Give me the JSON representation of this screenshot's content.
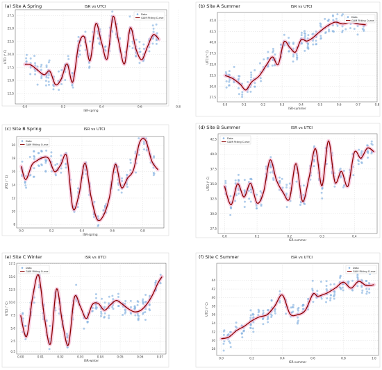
{
  "chart_data": [
    {
      "type": "scatter",
      "panel_label": "(a) Site A   Spring",
      "title": "ISR vs UTCI",
      "xlabel": "ISR-spring",
      "ylabel": "UTCI (° C)",
      "xlim": [
        -0.05,
        0.74
      ],
      "ylim": [
        10.5,
        28.6
      ],
      "xticks": [
        0.0,
        0.2,
        0.4,
        0.6,
        0.8
      ],
      "xtick_labels": [
        "0.0",
        "0.2",
        "0.4",
        "0.6",
        "0.8"
      ],
      "yticks": [
        12.5,
        15.0,
        17.5,
        20.0,
        22.5,
        25.0,
        27.5
      ],
      "ytick_labels": [
        "12.5",
        "15.0",
        "17.5",
        "20.0",
        "22.5",
        "25.0",
        "27.5"
      ],
      "legend": [
        "Data",
        "GAM Fitting Curve"
      ],
      "legend_position": "top-right",
      "fit_curve": {
        "x": [
          0.0,
          0.03,
          0.06,
          0.1,
          0.13,
          0.16,
          0.19,
          0.22,
          0.25,
          0.28,
          0.31,
          0.34,
          0.37,
          0.4,
          0.43,
          0.46,
          0.49,
          0.52,
          0.55,
          0.58,
          0.61,
          0.64,
          0.67,
          0.7
        ],
        "y": [
          18.1,
          18.0,
          17.2,
          16.1,
          16.8,
          14.2,
          15.3,
          18.2,
          14.7,
          21.7,
          23.4,
          18.8,
          25.9,
          22.3,
          19.2,
          27.3,
          22.4,
          18.2,
          25.1,
          21.0,
          19.0,
          21.5,
          23.8,
          22.9
        ]
      }
    },
    {
      "type": "scatter",
      "panel_label": "(b) Site A  Summer",
      "title": "ISR vs UTCI",
      "xlabel": "ISR-summer",
      "ylabel": "UTCI (° C)",
      "xlim": [
        -0.04,
        0.8
      ],
      "ylim": [
        26.5,
        46.8
      ],
      "xticks": [
        0.0,
        0.1,
        0.2,
        0.3,
        0.4,
        0.5,
        0.6,
        0.7,
        0.8
      ],
      "xtick_labels": [
        "0.0",
        "0.1",
        "0.2",
        "0.3",
        "0.4",
        "0.5",
        "0.6",
        "0.7",
        "0.8"
      ],
      "yticks": [
        27.5,
        30.0,
        32.5,
        35.0,
        37.5,
        40.0,
        42.5,
        45.0
      ],
      "ytick_labels": [
        "27.5",
        "30.0",
        "32.5",
        "35.0",
        "37.5",
        "40.0",
        "42.5",
        "45.0"
      ],
      "legend": [
        "Data",
        "GAM Fitting Curve"
      ],
      "legend_position": "top-right",
      "fit_curve": {
        "x": [
          0.0,
          0.04,
          0.08,
          0.11,
          0.14,
          0.18,
          0.22,
          0.25,
          0.28,
          0.31,
          0.34,
          0.37,
          0.4,
          0.43,
          0.46,
          0.5,
          0.54,
          0.58,
          0.62,
          0.66,
          0.7,
          0.74
        ],
        "y": [
          32.5,
          31.8,
          30.5,
          29.2,
          31.0,
          32.4,
          35.0,
          36.7,
          35.0,
          40.1,
          38.9,
          37.8,
          40.6,
          40.3,
          41.0,
          42.5,
          43.8,
          44.6,
          44.2,
          44.6,
          44.2,
          44.0
        ]
      }
    },
    {
      "type": "scatter",
      "panel_label": "(c) Site B Spring",
      "title": "ISR vs UTCI",
      "xlabel": "ISR-spring",
      "ylabel": "UTCI (° C)",
      "xlim": [
        -0.03,
        0.94
      ],
      "ylim": [
        7.5,
        21.3
      ],
      "xticks": [
        0.0,
        0.2,
        0.4,
        0.6,
        0.8
      ],
      "xtick_labels": [
        "0.0",
        "0.2",
        "0.4",
        "0.6",
        "0.8"
      ],
      "yticks": [
        8,
        10,
        12,
        14,
        16,
        18,
        20
      ],
      "ytick_labels": [
        "8",
        "10",
        "12",
        "14",
        "16",
        "18",
        "20"
      ],
      "legend": [
        "Data",
        "GAM Fitting Curve"
      ],
      "legend_position": "top-left",
      "fit_curve": {
        "x": [
          0.0,
          0.03,
          0.07,
          0.1,
          0.14,
          0.18,
          0.22,
          0.26,
          0.3,
          0.34,
          0.38,
          0.42,
          0.46,
          0.5,
          0.54,
          0.58,
          0.62,
          0.66,
          0.7,
          0.74,
          0.78,
          0.82,
          0.86,
          0.9
        ],
        "y": [
          16.8,
          14.8,
          17.0,
          17.6,
          18.1,
          18.0,
          16.0,
          17.0,
          18.3,
          10.5,
          12.5,
          17.3,
          12.2,
          8.8,
          9.3,
          12.0,
          17.1,
          13.6,
          15.0,
          16.3,
          20.4,
          20.7,
          17.6,
          16.3
        ]
      }
    },
    {
      "type": "scatter",
      "panel_label": "(d) Site B   Summer",
      "title": "ISR vs UTCI",
      "xlabel": "ISR-summer",
      "ylabel": "UTCI (° C)",
      "xlim": [
        -0.02,
        0.47
      ],
      "ylim": [
        26.7,
        43.4
      ],
      "xticks": [
        0.0,
        0.1,
        0.2,
        0.3,
        0.4
      ],
      "xtick_labels": [
        "0.0",
        "0.1",
        "0.2",
        "0.3",
        "0.4"
      ],
      "yticks": [
        27.5,
        30.0,
        32.5,
        35.0,
        37.5,
        40.0,
        42.5
      ],
      "ytick_labels": [
        "27.5",
        "30.0",
        "32.5",
        "35.0",
        "37.5",
        "40.0",
        "42.5"
      ],
      "legend": [
        "Data",
        "GAM Fitting Curve"
      ],
      "legend_position": "top-left",
      "fit_curve": {
        "x": [
          0.0,
          0.02,
          0.04,
          0.06,
          0.08,
          0.1,
          0.12,
          0.14,
          0.16,
          0.18,
          0.2,
          0.22,
          0.24,
          0.26,
          0.28,
          0.3,
          0.32,
          0.34,
          0.36,
          0.38,
          0.4,
          0.42,
          0.44,
          0.46
        ],
        "y": [
          34.6,
          31.5,
          35.0,
          32.8,
          35.1,
          31.8,
          33.6,
          39.0,
          35.6,
          33.6,
          32.5,
          38.4,
          32.1,
          36.0,
          40.9,
          34.7,
          42.2,
          35.3,
          37.1,
          34.6,
          40.3,
          39.3,
          41.0,
          40.4
        ]
      }
    },
    {
      "type": "scatter",
      "panel_label": "(e) Site C  Winter",
      "title": "ISR vs UTCI",
      "xlabel": "ISR-winter",
      "ylabel": "UTCI (° C)",
      "xlim": [
        -0.002,
        0.073
      ],
      "ylim": [
        0.0,
        17.6
      ],
      "xticks": [
        0.0,
        0.01,
        0.02,
        0.03,
        0.04,
        0.05,
        0.06,
        0.07
      ],
      "xtick_labels": [
        "0.00",
        "0.01",
        "0.02",
        "0.03",
        "0.04",
        "0.05",
        "0.06",
        "0.07"
      ],
      "yticks": [
        0.5,
        2.5,
        5.0,
        7.5,
        10.0,
        12.5,
        15.0,
        17.5
      ],
      "ytick_labels": [
        "0.5",
        "2.5",
        "5.0",
        "7.5",
        "10.0",
        "12.5",
        "15.0",
        "17.5"
      ],
      "legend": [
        "Data",
        "GAM Fitting Curve"
      ],
      "legend_position": "top-left",
      "fit_curve": {
        "x": [
          0.0,
          0.003,
          0.006,
          0.009,
          0.012,
          0.015,
          0.018,
          0.021,
          0.024,
          0.027,
          0.03,
          0.033,
          0.036,
          0.039,
          0.042,
          0.045,
          0.048,
          0.051,
          0.054,
          0.057,
          0.06,
          0.063,
          0.066,
          0.069,
          0.071
        ],
        "y": [
          7.5,
          3.4,
          11.0,
          15.3,
          7.0,
          2.0,
          12.6,
          6.1,
          1.8,
          11.0,
          9.2,
          6.9,
          9.6,
          9.8,
          8.5,
          9.5,
          10.4,
          9.7,
          8.8,
          8.2,
          8.4,
          9.5,
          11.3,
          13.8,
          15.0
        ]
      }
    },
    {
      "type": "scatter",
      "panel_label": "(f)  Site C       Summer",
      "title": "ISR vs UTCI",
      "xlabel": "ISR-summer",
      "ylabel": "UTCI (° C)",
      "xlim": [
        -0.03,
        1.03
      ],
      "ylim": [
        26.5,
        48.0
      ],
      "xticks": [
        0.0,
        0.2,
        0.4,
        0.6,
        0.8,
        1.0
      ],
      "xtick_labels": [
        "0.0",
        "0.2",
        "0.4",
        "0.6",
        "0.8",
        "1.0"
      ],
      "yticks": [
        28,
        30,
        32,
        34,
        36,
        38,
        40,
        42,
        44
      ],
      "ytick_labels": [
        "28",
        "30",
        "32",
        "34",
        "36",
        "38",
        "40",
        "42",
        "44"
      ],
      "legend": [
        "Data",
        "GAM Fitting Curve"
      ],
      "legend_position": "top-right",
      "fit_curve": {
        "x": [
          0.0,
          0.05,
          0.1,
          0.15,
          0.2,
          0.25,
          0.3,
          0.35,
          0.4,
          0.45,
          0.5,
          0.55,
          0.6,
          0.63,
          0.66,
          0.7,
          0.75,
          0.8,
          0.85,
          0.9,
          0.95,
          1.0
        ],
        "y": [
          30.4,
          30.8,
          32.3,
          33.3,
          34.6,
          35.5,
          36.0,
          38.0,
          40.6,
          36.2,
          36.0,
          37.0,
          40.8,
          40.3,
          40.6,
          41.2,
          42.3,
          43.6,
          42.2,
          43.8,
          42.8,
          43.0
        ]
      }
    }
  ]
}
